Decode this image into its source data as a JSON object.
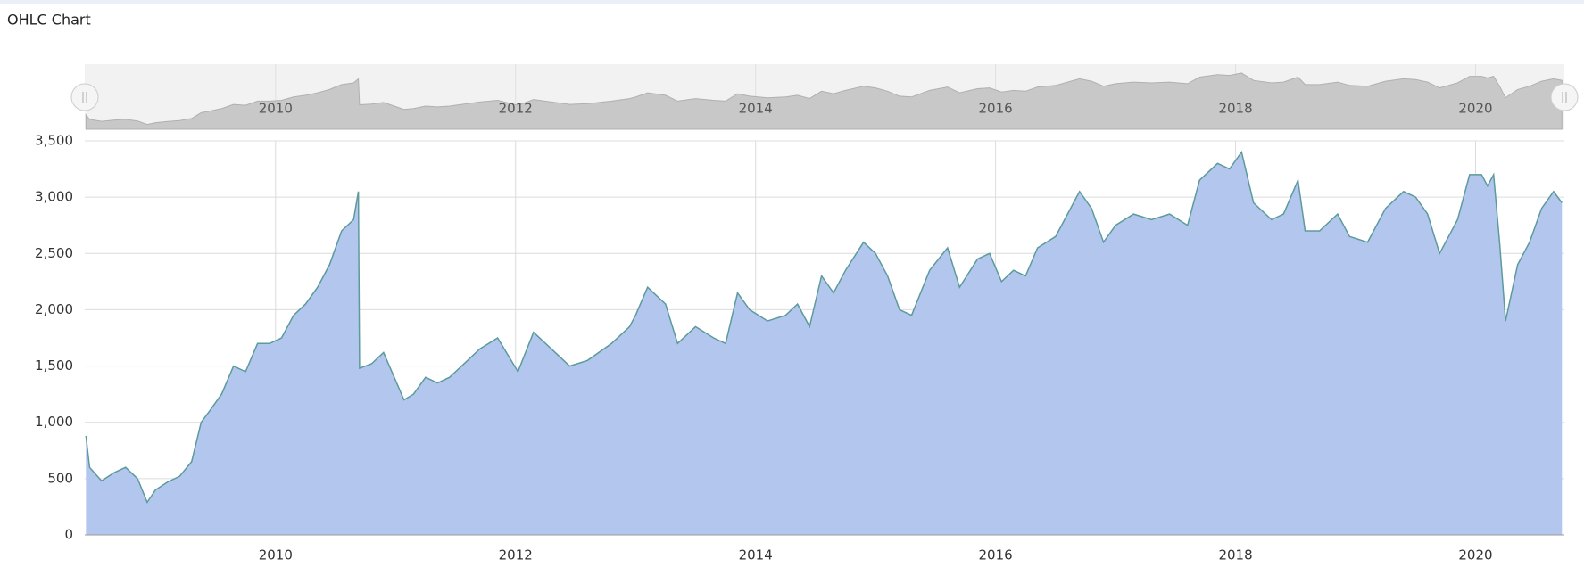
{
  "chart_data": {
    "type": "area",
    "title": "OHLC Chart",
    "color": "#b3c7ee",
    "line_color": "#5c9a9c",
    "grid": true,
    "xlim": [
      2008.41,
      2020.74
    ],
    "xticks": [
      2010,
      2012,
      2014,
      2016,
      2018,
      2020
    ],
    "ylim": [
      0,
      3500
    ],
    "yticks": [
      0,
      500,
      {
        "value": 1000,
        "label": "1,000"
      },
      {
        "value": 1500,
        "label": "1,500"
      },
      {
        "value": 2000,
        "label": "2,000"
      },
      {
        "value": 2500,
        "label": "2,500"
      },
      {
        "value": 3000,
        "label": "3,000"
      },
      {
        "value": 3500,
        "label": "3,500"
      }
    ],
    "x": [
      2008.42,
      2008.45,
      2008.55,
      2008.65,
      2008.75,
      2008.85,
      2008.93,
      2009.0,
      2009.1,
      2009.2,
      2009.3,
      2009.38,
      2009.45,
      2009.55,
      2009.65,
      2009.75,
      2009.85,
      2009.95,
      2010.05,
      2010.15,
      2010.25,
      2010.35,
      2010.45,
      2010.55,
      2010.65,
      2010.69,
      2010.7,
      2010.8,
      2010.9,
      2011.07,
      2011.15,
      2011.25,
      2011.35,
      2011.45,
      2011.6,
      2011.7,
      2011.85,
      2012.02,
      2012.15,
      2012.3,
      2012.45,
      2012.6,
      2012.8,
      2012.95,
      2013.0,
      2013.1,
      2013.25,
      2013.35,
      2013.5,
      2013.65,
      2013.75,
      2013.85,
      2013.95,
      2014.1,
      2014.25,
      2014.35,
      2014.45,
      2014.55,
      2014.65,
      2014.75,
      2014.9,
      2015.0,
      2015.1,
      2015.2,
      2015.3,
      2015.45,
      2015.6,
      2015.7,
      2015.85,
      2015.95,
      2016.05,
      2016.15,
      2016.25,
      2016.35,
      2016.5,
      2016.6,
      2016.7,
      2016.8,
      2016.9,
      2017.0,
      2017.15,
      2017.3,
      2017.45,
      2017.6,
      2017.7,
      2017.85,
      2017.95,
      2018.05,
      2018.15,
      2018.3,
      2018.4,
      2018.52,
      2018.58,
      2018.7,
      2018.85,
      2018.95,
      2019.1,
      2019.25,
      2019.4,
      2019.5,
      2019.6,
      2019.7,
      2019.85,
      2019.95,
      2020.05,
      2020.1,
      2020.15,
      2020.2,
      2020.25,
      2020.35,
      2020.45,
      2020.55,
      2020.65,
      2020.72
    ],
    "values": [
      880,
      600,
      480,
      550,
      600,
      500,
      290,
      400,
      470,
      520,
      650,
      1000,
      1100,
      1250,
      1500,
      1450,
      1700,
      1700,
      1750,
      1950,
      2050,
      2200,
      2400,
      2700,
      2800,
      3050,
      1480,
      1520,
      1620,
      1200,
      1250,
      1400,
      1350,
      1400,
      1550,
      1650,
      1750,
      1450,
      1800,
      1650,
      1500,
      1550,
      1700,
      1850,
      1950,
      2200,
      2050,
      1700,
      1850,
      1750,
      1700,
      2150,
      2000,
      1900,
      1950,
      2050,
      1850,
      2300,
      2150,
      2350,
      2600,
      2500,
      2300,
      2000,
      1950,
      2350,
      2550,
      2200,
      2450,
      2500,
      2250,
      2350,
      2300,
      2550,
      2650,
      2850,
      3050,
      2900,
      2600,
      2750,
      2850,
      2800,
      2850,
      2750,
      3150,
      3300,
      3250,
      3400,
      2950,
      2800,
      2850,
      3150,
      2700,
      2700,
      2850,
      2650,
      2600,
      2900,
      3050,
      3000,
      2850,
      2500,
      2800,
      3200,
      3200,
      3100,
      3200,
      2600,
      1900,
      2400,
      2600,
      2900,
      3050,
      2950
    ]
  }
}
